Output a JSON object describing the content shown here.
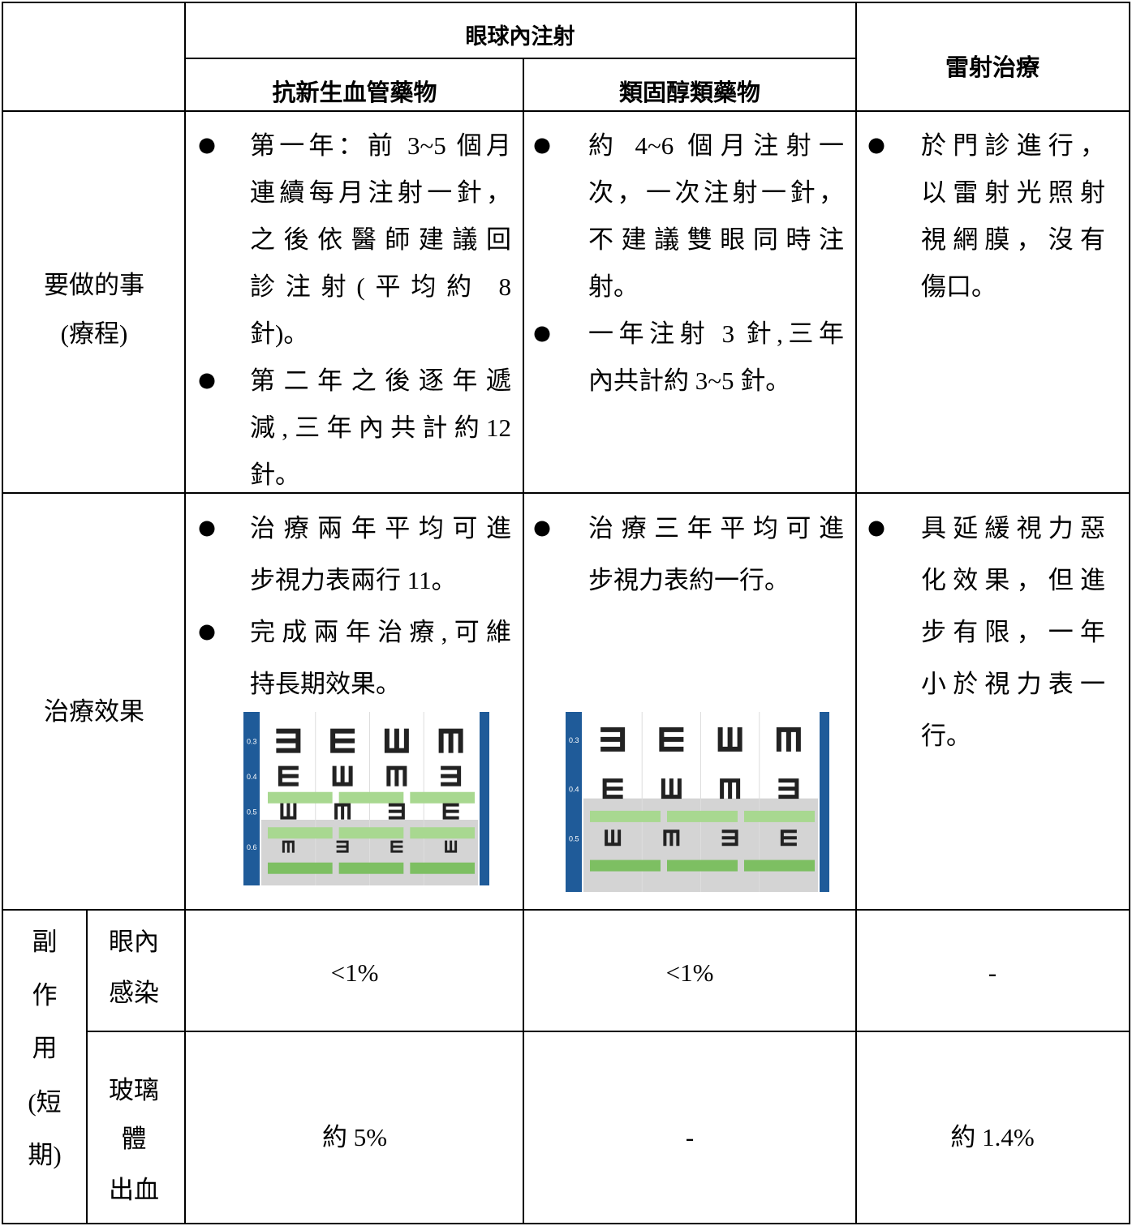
{
  "header": {
    "group": "眼球內注射",
    "columns": [
      "抗新生血管藥物",
      "類固醇類藥物"
    ],
    "laser": "雷射治療"
  },
  "rows": [
    {
      "label": [
        "要做的事",
        "(療程)"
      ],
      "cells": [
        {
          "bullets": [
            [
              "第一年：前 3~5 個月",
              "連續每月注射一針，",
              "之後依醫師建議回",
              "診注射(平均約 8",
              "針)。"
            ],
            [
              "第二年之後逐年遞",
              "減,三年內共計約12",
              "針。"
            ]
          ]
        },
        {
          "bullets": [
            [
              "約 4~6 個月注射一",
              "次，一次注射一針，",
              "不建議雙眼同時注",
              "射。"
            ],
            [
              "一年注射 3 針,三年",
              "內共計約 3~5 針。"
            ]
          ]
        },
        {
          "bullets": [
            [
              "於門診進行，",
              "以雷射光照射",
              "視網膜，沒有",
              "傷口。"
            ]
          ]
        }
      ]
    },
    {
      "label": [
        "治療效果"
      ],
      "cells": [
        {
          "bullets": [
            [
              "治療兩年平均可進",
              "步視力表兩行 11。"
            ],
            [
              "完成兩年治療,可維",
              "持長期效果。"
            ]
          ],
          "chart": {
            "acuity": [
              "0.3",
              "0.4",
              "0.5",
              "0.6"
            ]
          }
        },
        {
          "bullets": [
            [
              "治療三年平均可進",
              "步視力表約一行。"
            ]
          ],
          "chart": {
            "acuity": [
              "0.3",
              "0.4",
              "0.5"
            ]
          }
        },
        {
          "bullets": [
            [
              "具延緩視力惡",
              "化效果，但進",
              "步有限，一年",
              "小於視力表一",
              "行。"
            ]
          ]
        }
      ]
    }
  ],
  "side_effects": {
    "label": [
      "副",
      "作",
      "用",
      "(短",
      "期)"
    ],
    "rows": [
      {
        "label": [
          "眼內",
          "感染"
        ],
        "values": [
          "<1%",
          "<1%",
          "-"
        ]
      },
      {
        "label": [
          "玻璃",
          "體",
          "出血"
        ],
        "values": [
          "約 5%",
          "-",
          "約 1.4%"
        ]
      }
    ]
  }
}
